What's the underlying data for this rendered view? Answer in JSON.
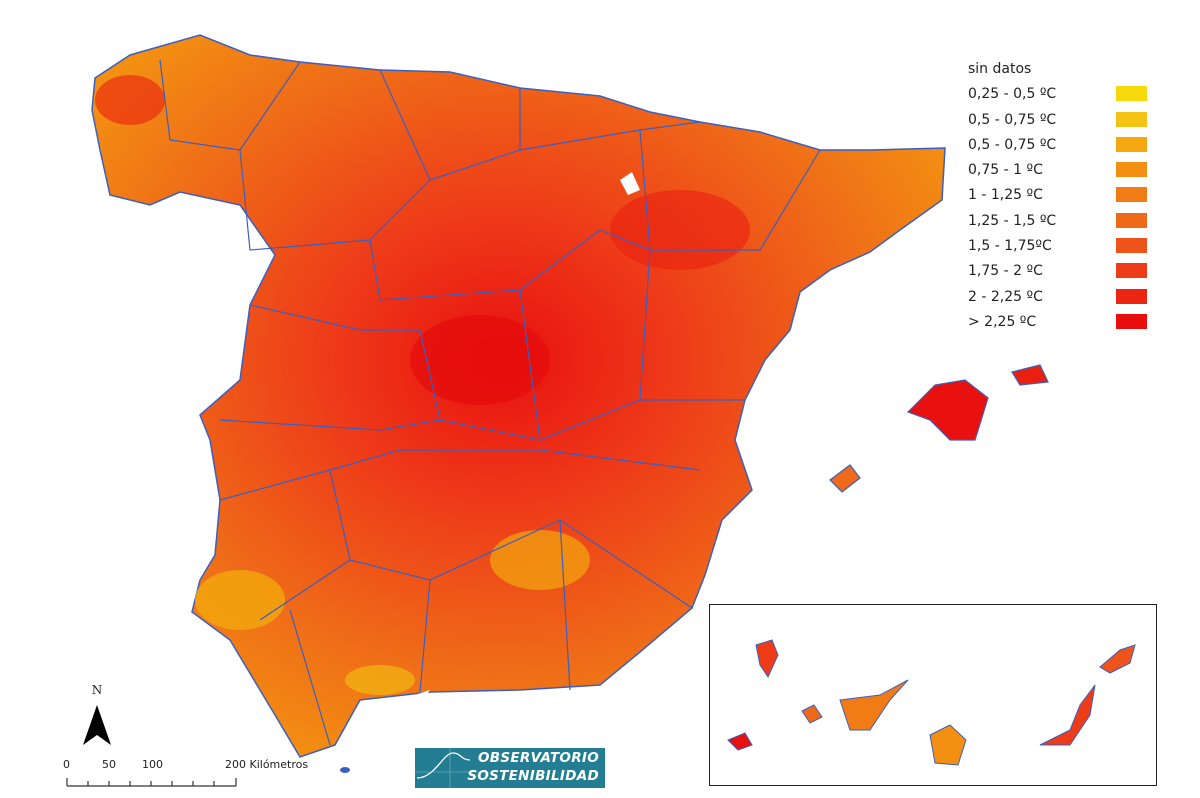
{
  "legend": {
    "items": [
      {
        "label": "sin datos",
        "color": null
      },
      {
        "label": "0,25 - 0,5 ºC",
        "color": "#f5d90a"
      },
      {
        "label": "0,5 - 0,75 ºC",
        "color": "#f2c312"
      },
      {
        "label": "0,5 - 0,75 ºC",
        "color": "#f2a80e"
      },
      {
        "label": "0,75 - 1 ºC",
        "color": "#f39012"
      },
      {
        "label": "1 - 1,25 ºC",
        "color": "#f17c16"
      },
      {
        "label": "1,25 - 1,5 ºC",
        "color": "#ef6a18"
      },
      {
        "label": "1,5 - 1,75ºC",
        "color": "#ee531a"
      },
      {
        "label": "1,75 - 2 ºC",
        "color": "#ee3c19"
      },
      {
        "label": "2 - 2,25 ºC",
        "color": "#ec2412"
      },
      {
        "label": "> 2,25 ºC",
        "color": "#e90e0e"
      }
    ]
  },
  "north_arrow": {
    "label": "N"
  },
  "scale_bar": {
    "ticks": [
      "0",
      "50",
      "100",
      "200 Kilómetros"
    ]
  },
  "logo": {
    "line1": "OBSERVATORIO",
    "line2": "SOSTENIBILIDAD"
  },
  "colors": {
    "border": "#3b5fc0",
    "logo_bg": "#247e93"
  }
}
